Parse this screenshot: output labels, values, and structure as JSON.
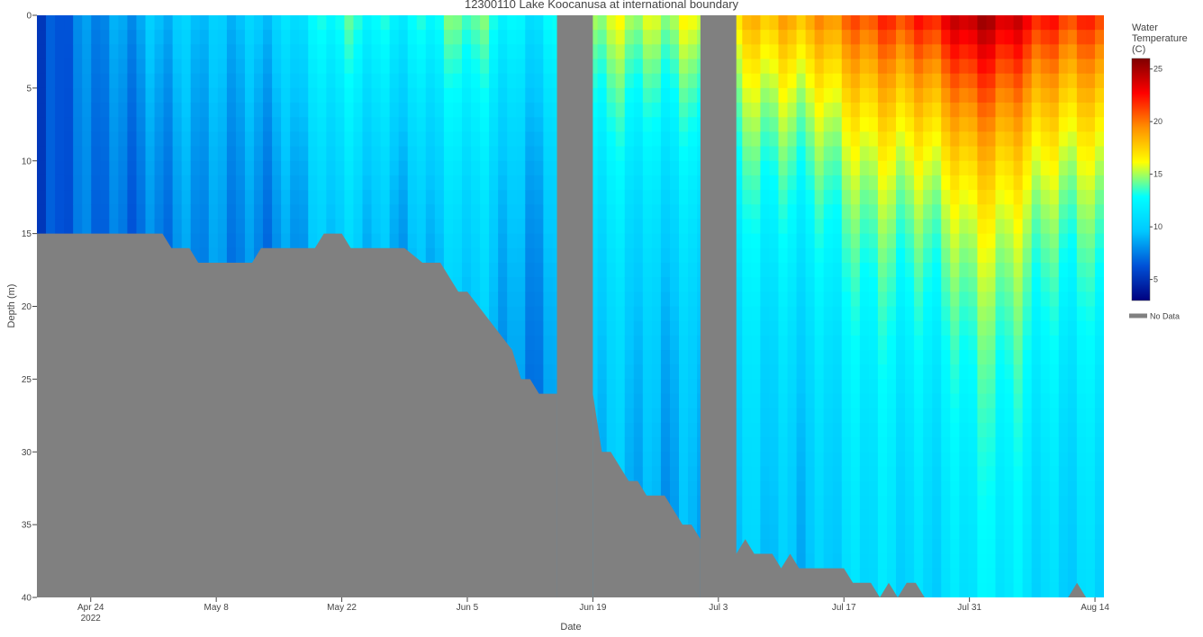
{
  "chart_data": {
    "type": "heatmap",
    "title": "12300110 Lake Koocanusa at international boundary",
    "xlabel": "Date",
    "ylabel": "Depth (m)",
    "x_range": [
      "2022-04-18",
      "2022-08-15"
    ],
    "x_ticks": [
      {
        "date": "2022-04-24",
        "label": "Apr 24",
        "sublabel": "2022"
      },
      {
        "date": "2022-05-08",
        "label": "May 8"
      },
      {
        "date": "2022-05-22",
        "label": "May 22"
      },
      {
        "date": "2022-06-05",
        "label": "Jun 5"
      },
      {
        "date": "2022-06-19",
        "label": "Jun 19"
      },
      {
        "date": "2022-07-03",
        "label": "Jul 3"
      },
      {
        "date": "2022-07-17",
        "label": "Jul 17"
      },
      {
        "date": "2022-07-31",
        "label": "Jul 31"
      },
      {
        "date": "2022-08-14",
        "label": "Aug 14"
      }
    ],
    "y_range": [
      0,
      40
    ],
    "y_reversed": true,
    "y_ticks": [
      0,
      5,
      10,
      15,
      20,
      25,
      30,
      35,
      40
    ],
    "colorbar": {
      "title": [
        "Water",
        "Temperature",
        "(C)"
      ],
      "min": 3,
      "max": 26,
      "ticks": [
        5,
        10,
        15,
        20,
        25
      ],
      "colorscale": [
        "#00007f",
        "#0051d7",
        "#00c8ff",
        "#00ffff",
        "#ffff00",
        "#ff9000",
        "#ff0000",
        "#7f0000"
      ]
    },
    "legend": {
      "entries": [
        {
          "name": "No Data",
          "color": "#808080"
        }
      ],
      "position": "right"
    },
    "no_data_color": "#808080",
    "max_depth_profile": [
      {
        "date": "2022-04-18",
        "depth": 15
      },
      {
        "date": "2022-05-02",
        "depth": 15
      },
      {
        "date": "2022-05-03",
        "depth": 16
      },
      {
        "date": "2022-05-05",
        "depth": 16
      },
      {
        "date": "2022-05-06",
        "depth": 17
      },
      {
        "date": "2022-05-12",
        "depth": 17
      },
      {
        "date": "2022-05-13",
        "depth": 16
      },
      {
        "date": "2022-05-19",
        "depth": 16
      },
      {
        "date": "2022-05-20",
        "depth": 15
      },
      {
        "date": "2022-05-22",
        "depth": 15
      },
      {
        "date": "2022-05-23",
        "depth": 16
      },
      {
        "date": "2022-05-29",
        "depth": 16
      },
      {
        "date": "2022-05-31",
        "depth": 17
      },
      {
        "date": "2022-06-02",
        "depth": 17
      },
      {
        "date": "2022-06-04",
        "depth": 19
      },
      {
        "date": "2022-06-05",
        "depth": 19
      },
      {
        "date": "2022-06-10",
        "depth": 23
      },
      {
        "date": "2022-06-11",
        "depth": 25
      },
      {
        "date": "2022-06-12",
        "depth": 25
      },
      {
        "date": "2022-06-13",
        "depth": 26
      },
      {
        "date": "2022-06-14",
        "depth": 26
      }
    ],
    "no_data_bands": [
      {
        "start": "2022-06-15",
        "end": "2022-06-19",
        "start_bottom": "2022-06-15",
        "end_bottom": "2022-06-19"
      },
      {
        "start": "2022-07-01",
        "end": "2022-07-05",
        "start_bottom": "2022-07-01",
        "end_bottom": "2022-07-04"
      }
    ],
    "max_depth_profile_2": [
      {
        "date": "2022-06-19",
        "depth": 26
      },
      {
        "date": "2022-06-20",
        "depth": 30
      },
      {
        "date": "2022-06-21",
        "depth": 30
      },
      {
        "date": "2022-06-23",
        "depth": 32
      },
      {
        "date": "2022-06-24",
        "depth": 32
      },
      {
        "date": "2022-06-25",
        "depth": 33
      },
      {
        "date": "2022-06-27",
        "depth": 33
      },
      {
        "date": "2022-06-29",
        "depth": 35
      },
      {
        "date": "2022-06-30",
        "depth": 35
      },
      {
        "date": "2022-07-01",
        "depth": 36
      }
    ],
    "max_depth_profile_3": [
      {
        "date": "2022-07-04",
        "depth": 36
      },
      {
        "date": "2022-07-05",
        "depth": 37
      },
      {
        "date": "2022-07-06",
        "depth": 36
      },
      {
        "date": "2022-07-07",
        "depth": 37
      },
      {
        "date": "2022-07-09",
        "depth": 37
      },
      {
        "date": "2022-07-10",
        "depth": 38
      },
      {
        "date": "2022-07-11",
        "depth": 37
      },
      {
        "date": "2022-07-12",
        "depth": 38
      },
      {
        "date": "2022-07-17",
        "depth": 38
      },
      {
        "date": "2022-07-18",
        "depth": 39
      },
      {
        "date": "2022-07-20",
        "depth": 39
      },
      {
        "date": "2022-07-21",
        "depth": 40
      },
      {
        "date": "2022-07-22",
        "depth": 39
      },
      {
        "date": "2022-07-23",
        "depth": 40
      },
      {
        "date": "2022-07-24",
        "depth": 39
      },
      {
        "date": "2022-07-25",
        "depth": 39
      },
      {
        "date": "2022-07-26",
        "depth": 40
      },
      {
        "date": "2022-08-11",
        "depth": 40
      },
      {
        "date": "2022-08-12",
        "depth": 39
      },
      {
        "date": "2022-08-13",
        "depth": 40
      }
    ],
    "surface_temperature_by_date": [
      {
        "date": "2022-04-18",
        "temp": 5
      },
      {
        "date": "2022-04-25",
        "temp": 8
      },
      {
        "date": "2022-05-01",
        "temp": 10
      },
      {
        "date": "2022-05-08",
        "temp": 9
      },
      {
        "date": "2022-05-15",
        "temp": 11
      },
      {
        "date": "2022-05-22",
        "temp": 13
      },
      {
        "date": "2022-05-29",
        "temp": 13
      },
      {
        "date": "2022-06-05",
        "temp": 14
      },
      {
        "date": "2022-06-12",
        "temp": 12
      },
      {
        "date": "2022-06-20",
        "temp": 15
      },
      {
        "date": "2022-06-27",
        "temp": 16
      },
      {
        "date": "2022-07-05",
        "temp": 17
      },
      {
        "date": "2022-07-10",
        "temp": 19
      },
      {
        "date": "2022-07-17",
        "temp": 20
      },
      {
        "date": "2022-07-24",
        "temp": 22
      },
      {
        "date": "2022-07-31",
        "temp": 25
      },
      {
        "date": "2022-08-07",
        "temp": 23
      },
      {
        "date": "2022-08-14",
        "temp": 22
      }
    ]
  }
}
